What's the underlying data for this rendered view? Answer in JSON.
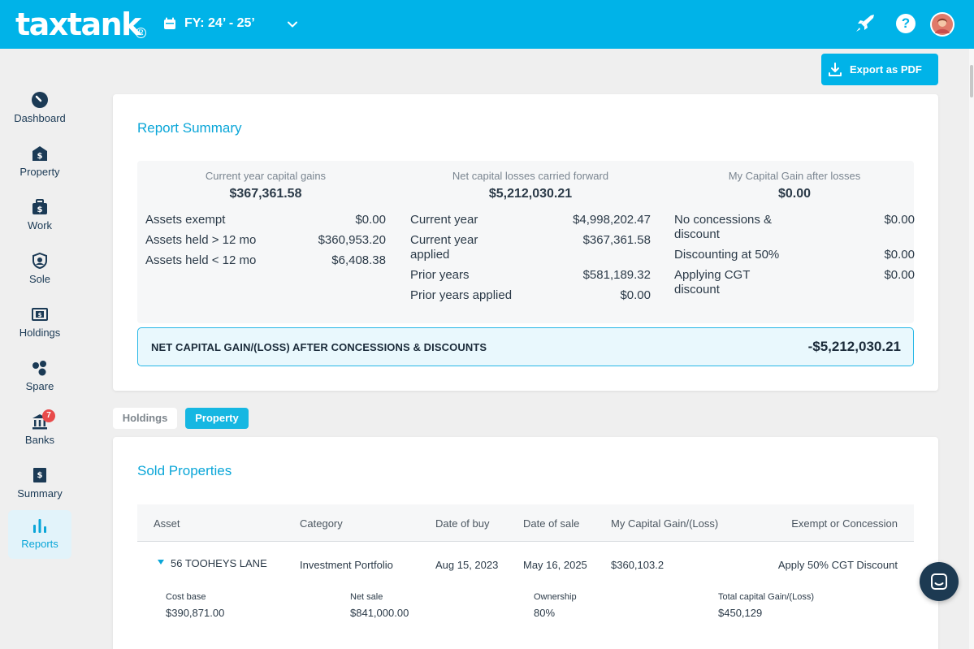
{
  "header": {
    "logo": "taxtank",
    "fy_label": "FY: 24’ - 25’",
    "brand_color": "#00b3e8"
  },
  "sidebar": {
    "items": [
      {
        "label": "Dashboard",
        "icon": "dashboard-gauge-icon"
      },
      {
        "label": "Property",
        "icon": "property-house-dollar-icon"
      },
      {
        "label": "Work",
        "icon": "work-briefcase-icon"
      },
      {
        "label": "Sole",
        "icon": "sole-shield-icon"
      },
      {
        "label": "Holdings",
        "icon": "holdings-cash-icon"
      },
      {
        "label": "Spare",
        "icon": "spare-circles-icon"
      },
      {
        "label": "Banks",
        "icon": "banks-building-icon",
        "badge": "7"
      },
      {
        "label": "Summary",
        "icon": "summary-document-icon"
      },
      {
        "label": "Reports",
        "icon": "reports-bar-chart-icon",
        "active": true
      }
    ]
  },
  "toolbar": {
    "export_label": "Export as PDF"
  },
  "report_summary": {
    "title": "Report Summary",
    "columns": [
      {
        "heading": "Current year capital gains",
        "total": "$367,361.58",
        "rows": [
          {
            "label": "Assets exempt",
            "value": "$0.00"
          },
          {
            "label": "Assets held > 12 mo",
            "value": "$360,953.20"
          },
          {
            "label": "Assets held < 12 mo",
            "value": "$6,408.38"
          }
        ]
      },
      {
        "heading": "Net capital losses carried forward",
        "total": "$5,212,030.21",
        "rows": [
          {
            "label": "Current year",
            "value": "$4,998,202.47"
          },
          {
            "label": "Current year applied",
            "value": "$367,361.58"
          },
          {
            "label": "Prior years",
            "value": "$581,189.32"
          },
          {
            "label": "Prior years applied",
            "value": "$0.00"
          }
        ]
      },
      {
        "heading": "My Capital Gain after losses",
        "total": "$0.00",
        "rows": [
          {
            "label": "No concessions & discount",
            "value": "$0.00"
          },
          {
            "label": "Discounting at 50%",
            "value": "$0.00"
          },
          {
            "label": "Applying CGT discount",
            "value": "$0.00"
          }
        ]
      }
    ],
    "net_label": "NET CAPITAL GAIN/(LOSS) AFTER CONCESSIONS & DISCOUNTS",
    "net_value": "-$5,212,030.21"
  },
  "tabs": [
    {
      "label": "Holdings",
      "active": false
    },
    {
      "label": "Property",
      "active": true
    }
  ],
  "sold_properties": {
    "title": "Sold Properties",
    "columns": [
      "Asset",
      "Category",
      "Date of buy",
      "Date of sale",
      "My Capital Gain/(Loss)",
      "Exempt or Concession"
    ],
    "rows": [
      {
        "asset": "56 TOOHEYS LANE",
        "category": "Investment Portfolio",
        "date_buy": "Aug 15, 2023",
        "date_sale": "May 16, 2025",
        "gain": "$360,103.2",
        "exempt": "Apply 50% CGT Discount",
        "details": [
          {
            "label": "Cost base",
            "value": "$390,871.00"
          },
          {
            "label": "Net sale",
            "value": "$841,000.00"
          },
          {
            "label": "Ownership",
            "value": "80%"
          },
          {
            "label": "Total capital Gain/(Loss)",
            "value": "$450,129"
          }
        ]
      }
    ]
  }
}
